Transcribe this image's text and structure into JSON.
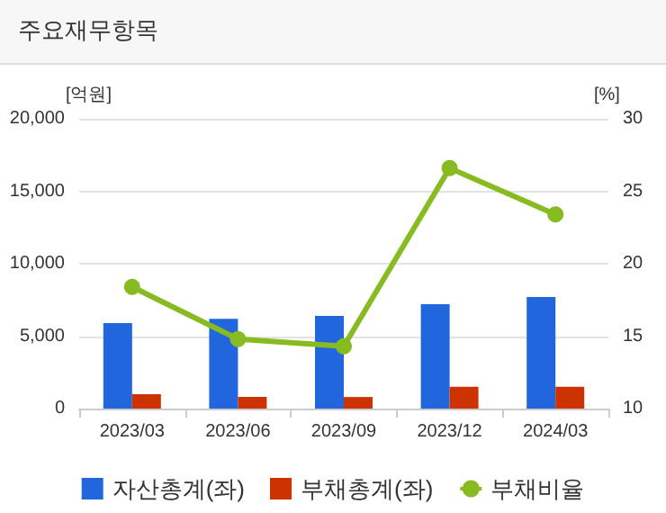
{
  "chart_data": {
    "type": "bar",
    "title": "주요재무항목",
    "ylabel": "[억원]",
    "y2label": "[%]",
    "categories": [
      "2023/03",
      "2023/06",
      "2023/09",
      "2023/12",
      "2024/03"
    ],
    "series": [
      {
        "name": "자산총계(좌)",
        "color": "#2266dd",
        "values": [
          5900,
          6200,
          6400,
          7200,
          7700
        ]
      },
      {
        "name": "부채총계(좌)",
        "color": "#cc3300",
        "values": [
          1000,
          800,
          800,
          1500,
          1500
        ]
      },
      {
        "name": "부채비율",
        "type": "line",
        "axis": "y2",
        "color": "#88bb22",
        "values": [
          18.4,
          14.8,
          14.3,
          26.6,
          23.4
        ]
      }
    ],
    "ylim": [
      0,
      20000
    ],
    "yticks": [
      0,
      {
        "value": 5000,
        "label": "5,000"
      },
      {
        "value": 10000,
        "label": "10,000"
      },
      {
        "value": 15000,
        "label": "15,000"
      },
      {
        "value": 20000,
        "label": "20,000"
      }
    ],
    "y2lim": [
      10,
      30
    ],
    "y2ticks": [
      10,
      15,
      20,
      25,
      30
    ],
    "grid": "y",
    "legend": "bottom",
    "marker": "circle"
  }
}
